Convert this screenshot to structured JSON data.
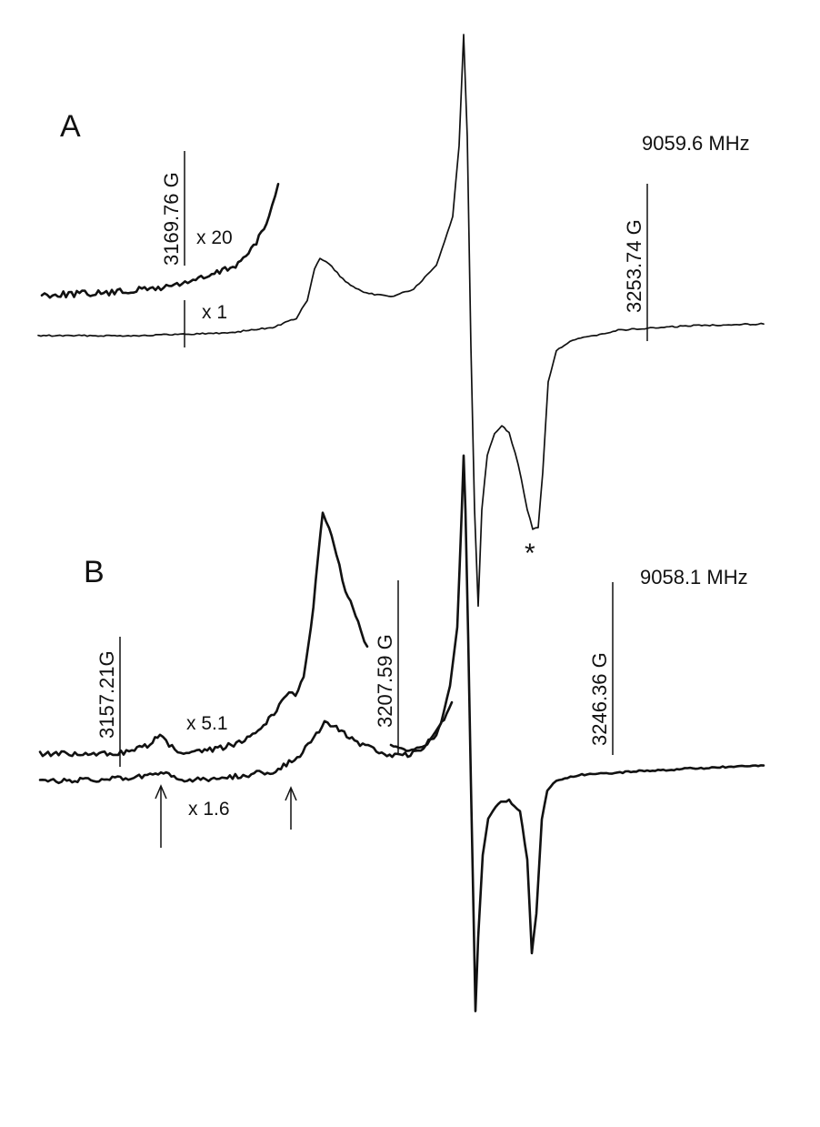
{
  "chart_data": {
    "type": "line",
    "title": "",
    "xlabel": "",
    "ylabel": "",
    "panels": [
      {
        "label": "A",
        "frequency": "9059.6 MHz",
        "field_markers": [
          {
            "label": "3169.76 G",
            "field_G": 3169.76
          },
          {
            "label": "3253.74 G",
            "field_G": 3253.74
          }
        ],
        "series": [
          {
            "name": "x 20",
            "gain_label": "x 20",
            "region": "low-field wing, rising toward the main line"
          },
          {
            "name": "x 1",
            "gain_label": "x 1",
            "features": [
              {
                "type": "positive peak"
              },
              {
                "type": "derivative crossing (main line)"
              },
              {
                "type": "negative peak",
                "marker": "*"
              }
            ]
          }
        ],
        "annotations": [
          {
            "text": "*",
            "meaning_shown": "marks negative peak of trace A"
          }
        ]
      },
      {
        "label": "B",
        "frequency": "9058.1 MHz",
        "field_markers": [
          {
            "label": "3157.21G",
            "field_G": 3157.21
          },
          {
            "label": "3207.59 G",
            "field_G": 3207.59
          },
          {
            "label": "3246.36 G",
            "field_G": 3246.36
          }
        ],
        "series": [
          {
            "name": "x 5.1",
            "gain_label": "x 5.1"
          },
          {
            "name": "x 1.6",
            "gain_label": "x 1.6"
          }
        ],
        "annotations": [
          {
            "text": "↑",
            "note": "arrow under weak feature near 3157 G"
          },
          {
            "text": "↑",
            "note": "arrow under shoulder before 3207 G region"
          }
        ]
      }
    ]
  }
}
